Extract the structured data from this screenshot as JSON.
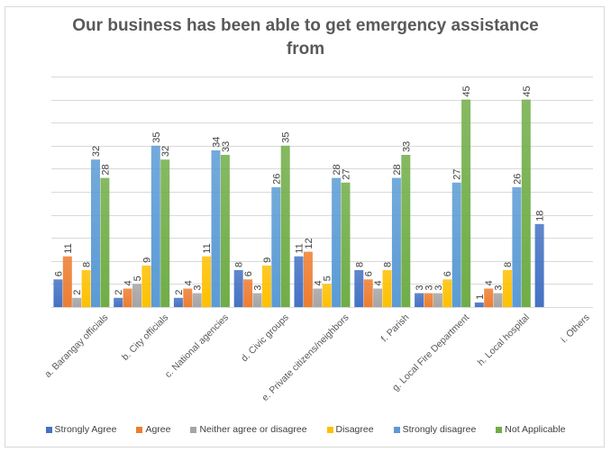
{
  "chart_data": {
    "type": "bar",
    "title": "Our business has been able to get emergency assistance from",
    "title_lines": [
      "Our business has been able to get emergency assistance",
      "from"
    ],
    "xlabel": "",
    "ylabel": "",
    "ylim": [
      0,
      50
    ],
    "y_grid_step": 5,
    "grid": true,
    "y_tick_labels_visible": false,
    "legend_position": "bottom",
    "categories": [
      "a.   Barangay officials",
      "b.  City officials",
      "c.   National agencies",
      "d.  Civic groups",
      "e.  Private citizens/neighbors",
      "f.    Parish",
      "g.   Local Fire Department",
      "h.  Local hospital",
      "i.    Others"
    ],
    "series": [
      {
        "name": "Strongly Agree",
        "color": "#4472C4",
        "values": [
          6,
          2,
          2,
          8,
          11,
          8,
          3,
          1,
          18
        ]
      },
      {
        "name": "Agree",
        "color": "#ED7D31",
        "values": [
          11,
          4,
          4,
          6,
          12,
          6,
          3,
          4,
          null
        ]
      },
      {
        "name": "Neither agree or disagree",
        "color": "#A5A5A5",
        "values": [
          2,
          5,
          3,
          3,
          4,
          4,
          3,
          3,
          null
        ]
      },
      {
        "name": "Disagree",
        "color": "#FFC000",
        "values": [
          8,
          9,
          11,
          9,
          5,
          8,
          6,
          8,
          null
        ]
      },
      {
        "name": "Strongly disagree",
        "color": "#5B9BD5",
        "values": [
          32,
          35,
          34,
          26,
          28,
          28,
          27,
          26,
          null
        ]
      },
      {
        "name": "Not Applicable",
        "color": "#70AD47",
        "values": [
          28,
          32,
          33,
          35,
          27,
          33,
          45,
          45,
          null
        ]
      }
    ]
  }
}
